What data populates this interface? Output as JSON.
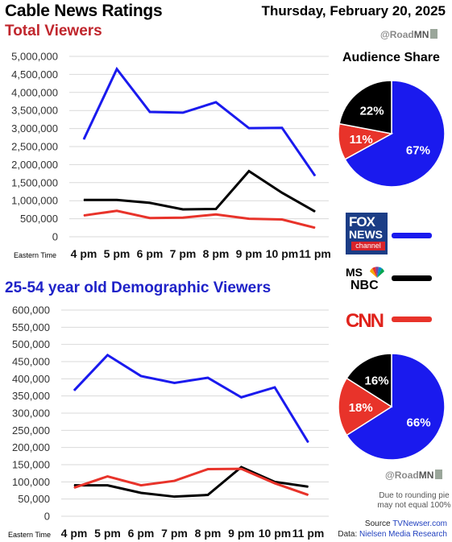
{
  "header": {
    "title": "Cable News Ratings",
    "date": "Thursday, February 20, 2025",
    "handle_prefix": "@Road",
    "handle_suffix": "MN"
  },
  "legend": {
    "networks": [
      {
        "name": "FOX NEWS channel",
        "color": "#1a1aee"
      },
      {
        "name": "MSNBC",
        "color": "#000000"
      },
      {
        "name": "CNN",
        "color": "#e8332a"
      }
    ]
  },
  "pie_top_title": "Audience Share",
  "note": "Due to rounding pie may not equal 100%",
  "source": {
    "label": "Source",
    "name": "TVNewser.com",
    "data_label": "Data:",
    "data_name": "Nielsen Media Research"
  },
  "chart_data": [
    {
      "type": "line",
      "title": "Total Viewers",
      "xlabel": "Eastern Time",
      "categories": [
        "4 pm",
        "5 pm",
        "6 pm",
        "7 pm",
        "8 pm",
        "9 pm",
        "10 pm",
        "11 pm"
      ],
      "yticks": [
        "5,000,000",
        "4,500,000",
        "4,000,000",
        "3,500,000",
        "3,000,000",
        "2,500,000",
        "2,000,000",
        "1,500,000",
        "1,000,000",
        "500,000",
        "0"
      ],
      "ylim": [
        0,
        5000000
      ],
      "grid": true,
      "series": [
        {
          "name": "FOX NEWS",
          "color": "#1a1aee",
          "values": [
            2700000,
            4650000,
            3460000,
            3440000,
            3730000,
            3010000,
            3020000,
            1690000
          ]
        },
        {
          "name": "MSNBC",
          "color": "#000000",
          "values": [
            1020000,
            1020000,
            940000,
            760000,
            770000,
            1820000,
            1220000,
            700000
          ]
        },
        {
          "name": "CNN",
          "color": "#e8332a",
          "values": [
            590000,
            720000,
            520000,
            530000,
            620000,
            500000,
            480000,
            250000
          ]
        }
      ]
    },
    {
      "type": "pie",
      "title": "Audience Share",
      "slices": [
        {
          "name": "FOX NEWS",
          "value": 67,
          "label": "67%",
          "color": "#1a1aee"
        },
        {
          "name": "CNN",
          "value": 11,
          "label": "11%",
          "color": "#e8332a"
        },
        {
          "name": "MSNBC",
          "value": 22,
          "label": "22%",
          "color": "#000000"
        }
      ]
    },
    {
      "type": "line",
      "title": "25-54 year old Demographic Viewers",
      "xlabel": "Eastern Time",
      "categories": [
        "4 pm",
        "5 pm",
        "6 pm",
        "7 pm",
        "8 pm",
        "9 pm",
        "10 pm",
        "11 pm"
      ],
      "yticks": [
        "600,000",
        "550,000",
        "500,000",
        "450,000",
        "400,000",
        "350,000",
        "300,000",
        "250,000",
        "200,000",
        "150,000",
        "100,000",
        "50,000",
        "0"
      ],
      "ylim": [
        0,
        600000
      ],
      "grid": true,
      "series": [
        {
          "name": "FOX NEWS",
          "color": "#1a1aee",
          "values": [
            366000,
            469000,
            408000,
            388000,
            403000,
            346000,
            375000,
            215000
          ]
        },
        {
          "name": "MSNBC",
          "color": "#000000",
          "values": [
            90000,
            90000,
            68000,
            57000,
            62000,
            143000,
            100000,
            86000
          ]
        },
        {
          "name": "CNN",
          "color": "#e8332a",
          "values": [
            83000,
            116000,
            90000,
            103000,
            137000,
            138000,
            96000,
            62000
          ]
        }
      ]
    },
    {
      "type": "pie",
      "slices": [
        {
          "name": "FOX NEWS",
          "value": 66,
          "label": "66%",
          "color": "#1a1aee"
        },
        {
          "name": "CNN",
          "value": 18,
          "label": "18%",
          "color": "#e8332a"
        },
        {
          "name": "MSNBC",
          "value": 16,
          "label": "16%",
          "color": "#000000"
        }
      ]
    }
  ]
}
